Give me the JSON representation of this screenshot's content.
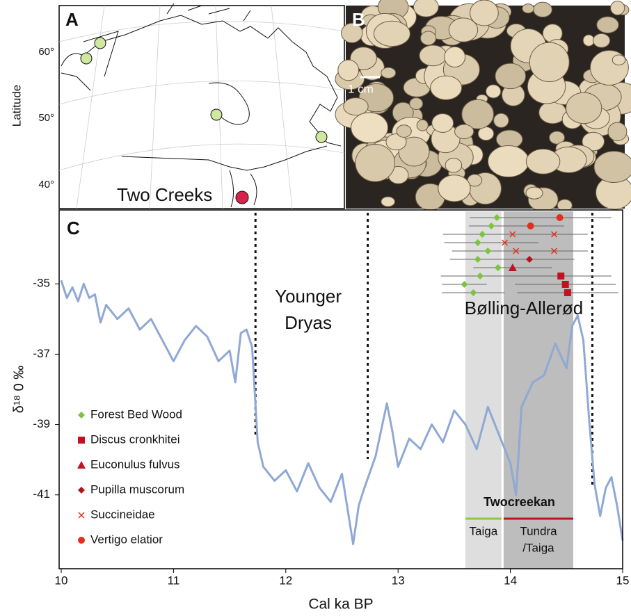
{
  "panel_a": {
    "label": "A",
    "y_axis_label": "Latitude",
    "yticks": [
      "60°",
      "50°",
      "40°"
    ],
    "site_label": "Two Creeks"
  },
  "panel_b": {
    "label": "B",
    "scale_label": "1 cm"
  },
  "chart_data": {
    "type": "line",
    "panel_label": "C",
    "x_label": "Cal ka BP",
    "y_label": "δ¹⁸ 0 ‰",
    "xlim": [
      10,
      15
    ],
    "ylim": [
      -43.1,
      -32.9
    ],
    "xticks": [
      10,
      11,
      12,
      13,
      14,
      15
    ],
    "yticks": [
      -35,
      -37,
      -39,
      -41
    ],
    "x": [
      10,
      10.05,
      10.1,
      10.15,
      10.2,
      10.25,
      10.3,
      10.35,
      10.4,
      10.5,
      10.6,
      10.7,
      10.8,
      10.9,
      11,
      11.1,
      11.2,
      11.3,
      11.4,
      11.5,
      11.55,
      11.6,
      11.65,
      11.7,
      11.75,
      11.8,
      11.9,
      12,
      12.1,
      12.2,
      12.3,
      12.4,
      12.5,
      12.6,
      12.65,
      12.7,
      12.8,
      12.9,
      12.95,
      13,
      13.1,
      13.2,
      13.3,
      13.4,
      13.5,
      13.6,
      13.7,
      13.8,
      13.9,
      14,
      14.05,
      14.1,
      14.2,
      14.3,
      14.4,
      14.5,
      14.55,
      14.6,
      14.65,
      14.7,
      14.75,
      14.8,
      14.85,
      14.9,
      14.95,
      15
    ],
    "values": [
      -34.9,
      -35.4,
      -35.1,
      -35.5,
      -35.0,
      -35.4,
      -35.3,
      -36.1,
      -35.6,
      -36.0,
      -35.7,
      -36.3,
      -36.0,
      -36.6,
      -37.2,
      -36.6,
      -36.2,
      -36.5,
      -37.2,
      -36.9,
      -37.8,
      -36.4,
      -36.3,
      -36.8,
      -39.5,
      -40.2,
      -40.6,
      -40.3,
      -40.9,
      -40.1,
      -40.8,
      -41.2,
      -40.4,
      -42.4,
      -41.3,
      -40.8,
      -39.9,
      -38.4,
      -39.2,
      -40.2,
      -39.4,
      -39.7,
      -39.0,
      -39.5,
      -38.6,
      -39.0,
      -39.7,
      -38.5,
      -39.3,
      -40.1,
      -41.0,
      -38.5,
      -37.8,
      -37.6,
      -36.7,
      -37.4,
      -36.2,
      -35.9,
      -36.6,
      -38.8,
      -40.7,
      -41.6,
      -40.8,
      -40.5,
      -41.3,
      -42.3
    ],
    "color": "#8fa8d4",
    "boundaries": [
      11.73,
      12.73,
      14.73
    ],
    "period_labels": [
      {
        "text": [
          "Younger",
          "Dryas"
        ],
        "x": 12.2
      },
      {
        "text": [
          "Bølling-Allerød"
        ],
        "x": 14.12
      }
    ],
    "zone_title": "Twocreekan",
    "zones": [
      {
        "label": [
          "Taiga"
        ],
        "x": [
          13.6,
          13.92
        ],
        "shade": "#dedede",
        "color": "#8dc63f"
      },
      {
        "label": [
          "Tundra",
          "/Taiga"
        ],
        "x": [
          13.94,
          14.56
        ],
        "shade": "#bdbdbd",
        "color": "#c1121f"
      }
    ],
    "markers": [
      {
        "name": "Forest Bed Wood",
        "shape": "diamond",
        "color": "#7dc242",
        "x": [
          13.88,
          13.83,
          13.75,
          13.71,
          13.8,
          13.71,
          13.89,
          13.73,
          13.59,
          13.67
        ],
        "xerr": [
          0.24,
          0.2,
          0.35,
          0.3,
          0.32,
          0.25,
          0.17,
          0.35,
          0.2,
          0.28
        ]
      },
      {
        "name": "Discus cronkhitei",
        "shape": "square",
        "color": "#c1121f",
        "x": [
          14.45,
          14.49,
          14.51
        ],
        "xerr": [
          0.45,
          0.45,
          0.45
        ]
      },
      {
        "name": "Euconulus fulvus",
        "shape": "triangle",
        "color": "#c1121f",
        "x": [
          14.02
        ],
        "xerr": [
          0.35
        ]
      },
      {
        "name": "Pupilla muscorum",
        "shape": "diamond",
        "color": "#b5121b",
        "x": [
          14.17
        ],
        "xerr": [
          0.4
        ]
      },
      {
        "name": "Succineidae",
        "shape": "cross",
        "color": "#e0301e",
        "x": [
          14.02,
          14.39,
          13.95,
          14.05,
          14.39
        ],
        "xerr": [
          0.35,
          0.3,
          0.3,
          0.35,
          0.3
        ]
      },
      {
        "name": "Vertigo elatior",
        "shape": "circle",
        "color": "#e0301e",
        "x": [
          14.44,
          14.18
        ],
        "xerr": [
          0.46,
          0.3
        ]
      }
    ]
  }
}
